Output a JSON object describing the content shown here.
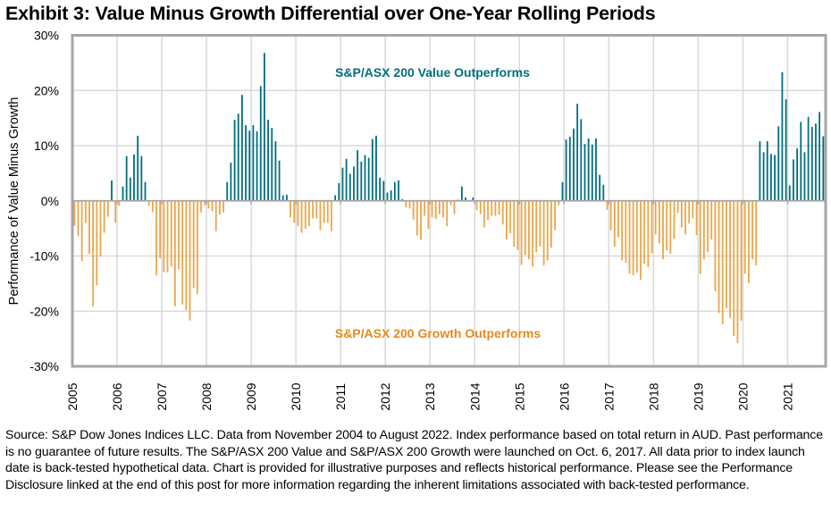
{
  "page": {
    "title": "Exhibit 3: Value Minus Growth Differential over One-Year Rolling Periods",
    "footnote": "Source: S&P Dow Jones Indices LLC. Data from November 2004 to August 2022. Index performance based on total return in AUD. Past performance is no guarantee of future results. The S&P/ASX 200 Value and S&P/ASX 200 Growth were launched on Oct. 6, 2017. All data prior to index launch date is back-tested hypothetical data. Chart is provided for illustrative purposes and reflects historical performance. Please see the Performance Disclosure linked at the end of this post for more information regarding the inherent limitations associated with back-tested performance."
  },
  "chart_data": {
    "type": "bar",
    "title": "Exhibit 3: Value Minus Growth Differential over One-Year Rolling Periods",
    "xlabel": "",
    "ylabel": "Performance of Value Minus Growth",
    "ylim": [
      -30,
      30
    ],
    "yticks": [
      30,
      20,
      10,
      0,
      -10,
      -20,
      -30
    ],
    "ytick_labels": [
      "30%",
      "20%",
      "10%",
      "0%",
      "-10%",
      "-20%",
      "-30%"
    ],
    "xlim": [
      2005,
      2021.85
    ],
    "xticks": [
      "2005",
      "2006",
      "2007",
      "2008",
      "2009",
      "2010",
      "2011",
      "2012",
      "2013",
      "2014",
      "2015",
      "2016",
      "2017",
      "2018",
      "2019",
      "2020",
      "2021"
    ],
    "grid": true,
    "frequency": "monthly",
    "start": "2005-01",
    "unit": "%",
    "colors": {
      "positive": "#006E7F",
      "negative": "#EBA64A",
      "grid": "#D9D9D9",
      "frame": "#A6A6A6"
    },
    "annotations": [
      {
        "text": "S&P/ASX 200 Value Outperforms",
        "color": "#006E7F",
        "position": "top-center"
      },
      {
        "text": "S&P/ASX 200 Growth Outperforms",
        "color": "#E8891C",
        "position": "bottom-center"
      }
    ],
    "values": [
      -4.5,
      -6.4,
      -10.9,
      -4.0,
      -9.6,
      -19.1,
      -15.3,
      -10.1,
      -5.8,
      -2.9,
      3.7,
      -4.0,
      -0.9,
      2.6,
      8.1,
      4.2,
      8.4,
      11.8,
      8.1,
      3.4,
      -0.9,
      -2.0,
      -13.5,
      -10.4,
      -12.9,
      -13.0,
      -11.9,
      -19.1,
      -12.4,
      -18.8,
      -19.8,
      -21.7,
      -15.8,
      -16.9,
      -2.1,
      -0.8,
      -1.4,
      -1.9,
      -5.5,
      -2.5,
      -2.1,
      3.4,
      6.9,
      14.7,
      15.8,
      19.2,
      13.7,
      12.7,
      13.7,
      12.6,
      20.8,
      26.8,
      14.7,
      13.2,
      10.8,
      7.3,
      1.0,
      1.1,
      -3.0,
      -4.0,
      -4.6,
      -5.8,
      -5.1,
      -4.6,
      -3.2,
      -3.2,
      -5.3,
      -4.0,
      -4.0,
      -5.5,
      1.0,
      3.2,
      6.0,
      7.6,
      4.9,
      6.2,
      9.2,
      7.1,
      8.3,
      7.8,
      11.2,
      11.8,
      4.2,
      3.6,
      1.5,
      1.9,
      3.4,
      3.7,
      0.3,
      -1.2,
      -1.4,
      -3.4,
      -6.3,
      -7.1,
      -2.7,
      -5.1,
      -3.0,
      -3.3,
      -2.4,
      -3.0,
      -4.6,
      -0.8,
      -2.4,
      0.2,
      2.6,
      0.6,
      -0.2,
      0.6,
      -1.7,
      -2.4,
      -4.8,
      -3.5,
      -2.7,
      -2.7,
      -2.5,
      -4.3,
      -7.0,
      -5.9,
      -8.3,
      -8.9,
      -11.6,
      -9.8,
      -10.6,
      -11.9,
      -9.3,
      -8.3,
      -11.7,
      -10.8,
      -8.5,
      -5.3,
      -0.8,
      3.4,
      11.1,
      11.6,
      13.1,
      17.6,
      14.8,
      10.3,
      11.3,
      10.2,
      11.3,
      4.7,
      2.9,
      -1.6,
      -5.3,
      -8.3,
      -6.6,
      -10.8,
      -11.2,
      -13.2,
      -13.5,
      -13.0,
      -14.3,
      -11.4,
      -12.0,
      -9.5,
      -6.1,
      -7.7,
      -10.6,
      -9.0,
      -9.6,
      -6.9,
      -2.2,
      -4.8,
      -6.1,
      -4.1,
      -3.2,
      -6.2,
      -13.3,
      -10.6,
      -9.3,
      -7.0,
      -16.4,
      -20.3,
      -22.4,
      -19.5,
      -21.2,
      -24.5,
      -25.8,
      -21.7,
      -13.2,
      -14.9,
      -10.6,
      -11.7,
      10.8,
      8.8,
      10.8,
      8.5,
      8.3,
      13.5,
      23.3,
      18.4,
      2.8,
      7.5,
      9.5,
      14.3,
      8.8,
      15.2,
      13.4,
      14.0,
      16.1,
      11.7
    ]
  }
}
